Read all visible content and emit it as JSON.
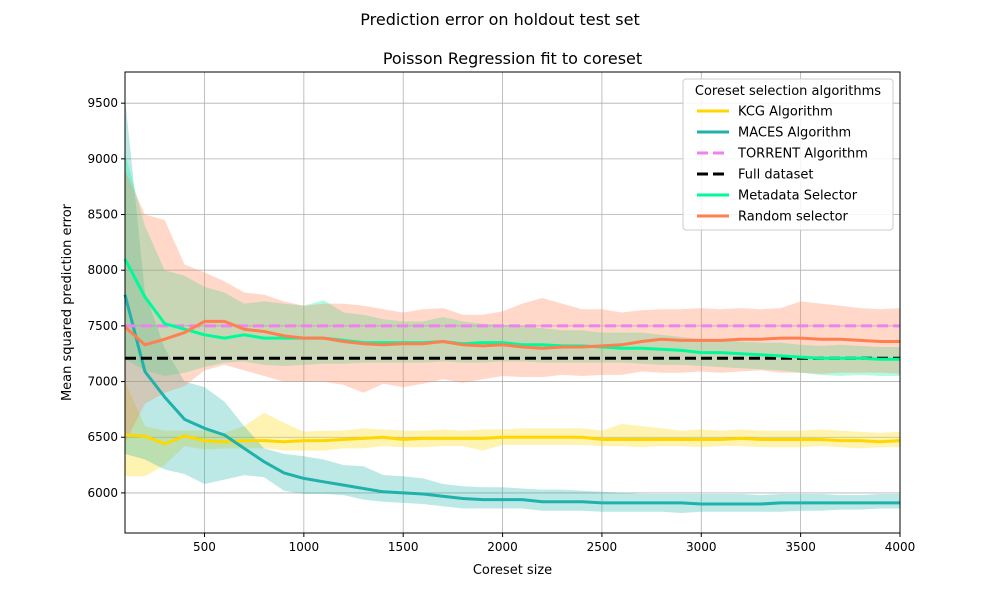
{
  "figure": {
    "suptitle": "Prediction error on holdout test set"
  },
  "chart_data": {
    "type": "line",
    "title": "Poisson Regression fit to coreset",
    "xlabel": "Coreset size",
    "ylabel": "Mean squared prediction error",
    "xlim": [
      100,
      4000
    ],
    "ylim": [
      5640,
      9780
    ],
    "xticks": [
      500,
      1000,
      1500,
      2000,
      2500,
      3000,
      3500,
      4000
    ],
    "yticks": [
      6000,
      6500,
      7000,
      7500,
      8000,
      8500,
      9000,
      9500
    ],
    "grid": true,
    "legend": {
      "title": "Coreset selection algorithms",
      "position": "upper right"
    },
    "x": [
      100,
      200,
      300,
      400,
      500,
      600,
      700,
      800,
      900,
      1000,
      1100,
      1200,
      1300,
      1400,
      1500,
      1600,
      1700,
      1800,
      1900,
      2000,
      2100,
      2200,
      2300,
      2400,
      2500,
      2600,
      2700,
      2800,
      2900,
      3000,
      3100,
      3200,
      3300,
      3400,
      3500,
      3600,
      3700,
      3800,
      3900,
      4000
    ],
    "series": [
      {
        "name": "KCG Algorithm",
        "color": "#ffd700",
        "style": "solid",
        "values": [
          6520,
          6510,
          6440,
          6510,
          6470,
          6460,
          6470,
          6470,
          6460,
          6470,
          6470,
          6480,
          6490,
          6500,
          6480,
          6490,
          6490,
          6490,
          6490,
          6500,
          6500,
          6500,
          6500,
          6500,
          6480,
          6480,
          6480,
          6480,
          6480,
          6480,
          6480,
          6490,
          6480,
          6480,
          6480,
          6480,
          6470,
          6470,
          6460,
          6470
        ],
        "lower": [
          6150,
          6150,
          6250,
          6420,
          6390,
          6400,
          6400,
          6400,
          6380,
          6380,
          6380,
          6400,
          6400,
          6420,
          6410,
          6410,
          6420,
          6420,
          6380,
          6430,
          6430,
          6430,
          6430,
          6430,
          6420,
          6420,
          6410,
          6420,
          6420,
          6410,
          6420,
          6420,
          6410,
          6410,
          6410,
          6420,
          6410,
          6400,
          6410,
          6410
        ],
        "upper": [
          7000,
          6600,
          6560,
          6560,
          6560,
          6540,
          6600,
          6720,
          6630,
          6550,
          6560,
          6560,
          6580,
          6570,
          6560,
          6560,
          6570,
          6560,
          6570,
          6570,
          6580,
          6580,
          6580,
          6580,
          6560,
          6620,
          6600,
          6580,
          6560,
          6570,
          6560,
          6570,
          6560,
          6560,
          6560,
          6570,
          6560,
          6550,
          6540,
          6550
        ]
      },
      {
        "name": "MACES Algorithm",
        "color": "#20b2aa",
        "style": "solid",
        "values": [
          7780,
          7090,
          6860,
          6660,
          6580,
          6520,
          6400,
          6280,
          6180,
          6130,
          6100,
          6070,
          6040,
          6010,
          6000,
          5990,
          5970,
          5950,
          5940,
          5940,
          5940,
          5920,
          5920,
          5920,
          5910,
          5910,
          5910,
          5910,
          5910,
          5900,
          5900,
          5900,
          5900,
          5910,
          5910,
          5910,
          5910,
          5910,
          5910,
          5910
        ],
        "lower": [
          6350,
          6300,
          6210,
          6170,
          6080,
          6120,
          6160,
          6140,
          6020,
          5990,
          5990,
          5980,
          5940,
          5920,
          5910,
          5900,
          5880,
          5860,
          5860,
          5860,
          5860,
          5840,
          5840,
          5840,
          5830,
          5830,
          5830,
          5830,
          5820,
          5830,
          5830,
          5830,
          5830,
          5830,
          5840,
          5840,
          5850,
          5850,
          5860,
          5860
        ],
        "upper": [
          9550,
          7800,
          7300,
          7000,
          6950,
          6820,
          6600,
          6400,
          6350,
          6330,
          6300,
          6250,
          6240,
          6160,
          6150,
          6130,
          6080,
          6060,
          6050,
          6050,
          6040,
          6030,
          6030,
          6020,
          6010,
          6000,
          5990,
          5990,
          5990,
          5990,
          5990,
          5990,
          5980,
          5990,
          5990,
          5990,
          5980,
          5980,
          5990,
          5990
        ]
      },
      {
        "name": "TORRENT Algorithm",
        "color": "#ee82ee",
        "style": "dashed",
        "values": [
          7500,
          7500,
          7500,
          7500,
          7500,
          7500,
          7500,
          7500,
          7500,
          7500,
          7500,
          7500,
          7500,
          7500,
          7500,
          7500,
          7500,
          7500,
          7500,
          7500,
          7500,
          7500,
          7500,
          7500,
          7500,
          7500,
          7500,
          7500,
          7500,
          7500,
          7500,
          7500,
          7500,
          7500,
          7500,
          7500,
          7500,
          7500,
          7500,
          7500
        ]
      },
      {
        "name": "Full dataset",
        "color": "#000000",
        "style": "dashed",
        "values": [
          7210,
          7210,
          7210,
          7210,
          7210,
          7210,
          7210,
          7210,
          7210,
          7210,
          7210,
          7210,
          7210,
          7210,
          7210,
          7210,
          7210,
          7210,
          7210,
          7210,
          7210,
          7210,
          7210,
          7210,
          7210,
          7210,
          7210,
          7210,
          7210,
          7210,
          7210,
          7210,
          7210,
          7210,
          7210,
          7210,
          7210,
          7210,
          7210,
          7210
        ]
      },
      {
        "name": "Metadata Selector",
        "color": "#00fa9a",
        "style": "solid",
        "values": [
          8100,
          7760,
          7520,
          7470,
          7420,
          7390,
          7420,
          7390,
          7390,
          7390,
          7390,
          7370,
          7350,
          7350,
          7350,
          7350,
          7360,
          7340,
          7350,
          7350,
          7330,
          7330,
          7320,
          7320,
          7310,
          7300,
          7300,
          7290,
          7280,
          7260,
          7260,
          7250,
          7240,
          7230,
          7220,
          7210,
          7210,
          7210,
          7200,
          7200
        ],
        "lower": [
          7200,
          7100,
          7050,
          7080,
          7130,
          7170,
          7180,
          7150,
          7140,
          7150,
          7160,
          7160,
          7170,
          7170,
          7170,
          7170,
          7180,
          7170,
          7170,
          7180,
          7180,
          7170,
          7170,
          7170,
          7170,
          7170,
          7160,
          7150,
          7150,
          7140,
          7130,
          7120,
          7110,
          7100,
          7080,
          7060,
          7050,
          7060,
          7050,
          7050
        ],
        "upper": [
          9050,
          8400,
          8000,
          7950,
          7850,
          7800,
          7700,
          7720,
          7700,
          7680,
          7730,
          7620,
          7600,
          7560,
          7540,
          7540,
          7580,
          7540,
          7520,
          7510,
          7500,
          7480,
          7460,
          7460,
          7440,
          7440,
          7440,
          7420,
          7400,
          7380,
          7370,
          7360,
          7350,
          7350,
          7330,
          7320,
          7330,
          7320,
          7310,
          7310
        ]
      },
      {
        "name": "Random selector",
        "color": "#ff7f50",
        "style": "solid",
        "values": [
          7490,
          7330,
          7380,
          7440,
          7540,
          7540,
          7470,
          7450,
          7410,
          7390,
          7390,
          7360,
          7340,
          7330,
          7340,
          7340,
          7360,
          7330,
          7320,
          7330,
          7310,
          7300,
          7310,
          7310,
          7320,
          7330,
          7360,
          7380,
          7370,
          7370,
          7370,
          7380,
          7380,
          7390,
          7390,
          7380,
          7380,
          7370,
          7360,
          7360
        ],
        "lower": [
          6450,
          6800,
          6900,
          6960,
          7100,
          7150,
          7100,
          7050,
          7000,
          7000,
          7000,
          6970,
          6900,
          6980,
          6950,
          6980,
          7020,
          6990,
          7020,
          7050,
          7040,
          7040,
          7060,
          7050,
          7060,
          7060,
          7090,
          7080,
          7080,
          7090,
          7080,
          7090,
          7100,
          7080,
          7080,
          7070,
          7080,
          7080,
          7080,
          7070
        ],
        "upper": [
          8900,
          8500,
          8450,
          8050,
          7980,
          7900,
          7800,
          7780,
          7720,
          7680,
          7700,
          7700,
          7680,
          7650,
          7620,
          7650,
          7660,
          7600,
          7600,
          7630,
          7700,
          7750,
          7700,
          7650,
          7650,
          7620,
          7640,
          7650,
          7650,
          7660,
          7650,
          7660,
          7650,
          7660,
          7720,
          7700,
          7680,
          7660,
          7650,
          7660
        ]
      }
    ]
  }
}
